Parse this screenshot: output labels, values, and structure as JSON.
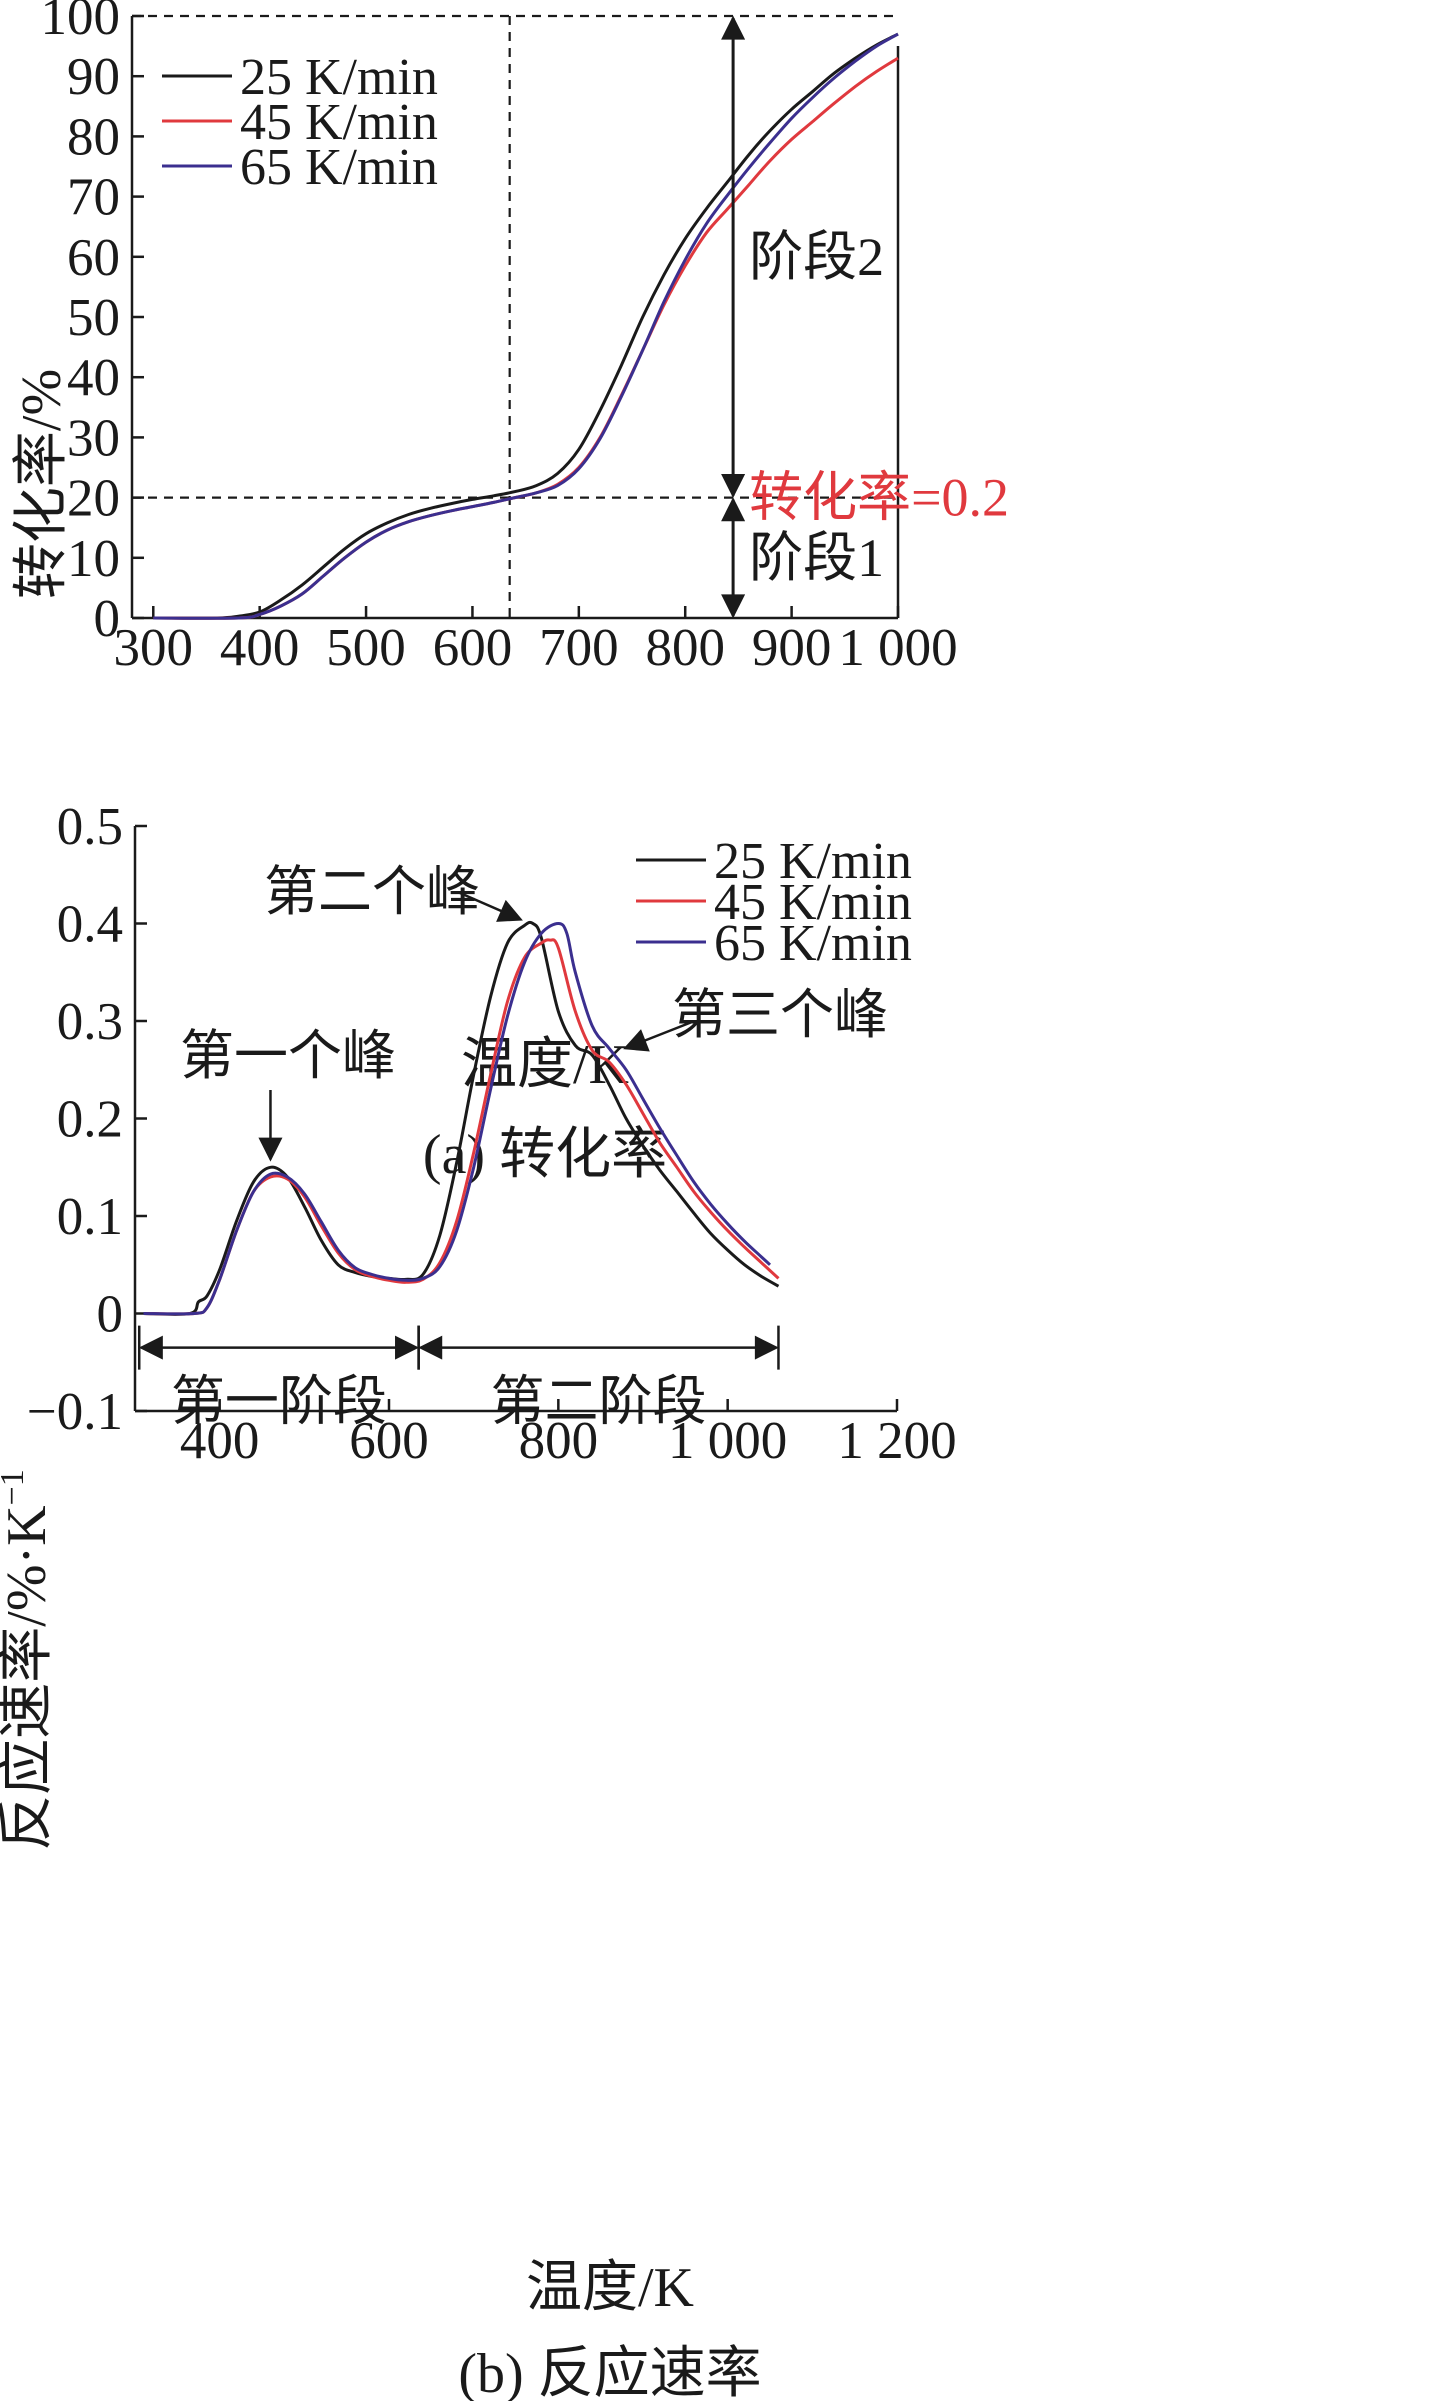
{
  "chart_data": [
    {
      "panel": "a",
      "type": "line",
      "caption": "(a) 转化率",
      "xlabel": "温度/K",
      "ylabel": "转化率/%",
      "xlim": [
        280,
        1000
      ],
      "ylim": [
        0,
        100
      ],
      "xticks": [
        {
          "value": 300,
          "label": "300"
        },
        {
          "value": 400,
          "label": "400"
        },
        {
          "value": 500,
          "label": "500"
        },
        {
          "value": 600,
          "label": "600"
        },
        {
          "value": 700,
          "label": "700"
        },
        {
          "value": 800,
          "label": "800"
        },
        {
          "value": 900,
          "label": "900"
        },
        {
          "value": 1000,
          "label": "1 000"
        }
      ],
      "yticks": [
        {
          "value": 0,
          "label": "0"
        },
        {
          "value": 10,
          "label": "10"
        },
        {
          "value": 20,
          "label": "20"
        },
        {
          "value": 30,
          "label": "30"
        },
        {
          "value": 40,
          "label": "40"
        },
        {
          "value": 50,
          "label": "50"
        },
        {
          "value": 60,
          "label": "60"
        },
        {
          "value": 70,
          "label": "70"
        },
        {
          "value": 80,
          "label": "80"
        },
        {
          "value": 90,
          "label": "90"
        },
        {
          "value": 100,
          "label": "100"
        }
      ],
      "legend_position": "top-left",
      "series": [
        {
          "name": "25 K/min",
          "color": "#1a1a1a",
          "x": [
            300,
            360,
            380,
            400,
            420,
            440,
            460,
            480,
            500,
            520,
            540,
            560,
            580,
            600,
            620,
            640,
            660,
            680,
            700,
            720,
            740,
            760,
            780,
            800,
            820,
            840,
            860,
            880,
            900,
            920,
            940,
            960,
            980,
            1000
          ],
          "y": [
            0,
            0,
            0.3,
            1,
            3,
            5.5,
            8.5,
            11.5,
            14,
            15.8,
            17.2,
            18.2,
            19,
            19.7,
            20.3,
            21,
            22,
            24,
            28,
            34.5,
            42,
            50,
            57,
            63,
            68,
            72.5,
            77,
            81,
            84.5,
            87.5,
            90.5,
            93,
            95.2,
            97
          ]
        },
        {
          "name": "45 K/min",
          "color": "#e0393e",
          "x": [
            300,
            380,
            400,
            420,
            440,
            460,
            480,
            500,
            520,
            540,
            560,
            580,
            600,
            620,
            640,
            660,
            680,
            700,
            720,
            740,
            760,
            780,
            800,
            820,
            840,
            860,
            880,
            900,
            920,
            940,
            960,
            980,
            1000
          ],
          "y": [
            0,
            0,
            0.6,
            2,
            4,
            7,
            10,
            12.6,
            14.6,
            16,
            17,
            17.8,
            18.5,
            19.2,
            20,
            20.8,
            22.2,
            25,
            30,
            37,
            44.5,
            52,
            58.5,
            64,
            68,
            72,
            76,
            79.5,
            82.5,
            85.5,
            88.3,
            90.8,
            93
          ]
        },
        {
          "name": "65 K/min",
          "color": "#3b2f8f",
          "x": [
            300,
            380,
            400,
            420,
            440,
            460,
            480,
            500,
            520,
            540,
            560,
            580,
            600,
            620,
            640,
            660,
            680,
            700,
            720,
            740,
            760,
            780,
            800,
            820,
            840,
            860,
            880,
            900,
            920,
            940,
            960,
            980,
            1000
          ],
          "y": [
            0,
            0,
            0.6,
            2,
            4,
            7,
            10,
            12.6,
            14.6,
            16,
            17,
            17.8,
            18.5,
            19.2,
            20,
            20.8,
            22,
            24.8,
            29.8,
            36.8,
            44.5,
            52.5,
            59.5,
            65.5,
            70.3,
            74.8,
            79,
            83,
            86.5,
            89.7,
            92.5,
            95,
            97
          ]
        }
      ],
      "reference_lines": [
        {
          "orientation": "horizontal",
          "value": 100
        },
        {
          "orientation": "horizontal",
          "value": 20
        },
        {
          "orientation": "vertical",
          "value": 635
        }
      ],
      "annotations": [
        {
          "text": "阶段2",
          "x": 845,
          "y": 60
        },
        {
          "text": "转化率=0.2",
          "x": 845,
          "y": 20,
          "color": "#e0393e"
        },
        {
          "text": "阶段1",
          "x": 845,
          "y": 10
        }
      ],
      "stage_arrows": [
        {
          "x": 845,
          "from": 20,
          "to": 100
        },
        {
          "x": 845,
          "from": 0,
          "to": 20
        }
      ]
    },
    {
      "panel": "b",
      "type": "line",
      "caption": "(b) 反应速率",
      "xlabel": "温度/K",
      "ylabel": "反应速率/%·K",
      "ylabel_superscript": "−1",
      "xlim": [
        300,
        1200
      ],
      "ylim": [
        -0.1,
        0.5
      ],
      "xticks": [
        {
          "value": 400,
          "label": "400"
        },
        {
          "value": 600,
          "label": "600"
        },
        {
          "value": 800,
          "label": "800"
        },
        {
          "value": 1000,
          "label": "1 000"
        },
        {
          "value": 1200,
          "label": "1 200"
        }
      ],
      "yticks": [
        {
          "value": -0.1,
          "label": "−0.1"
        },
        {
          "value": 0,
          "label": "0"
        },
        {
          "value": 0.1,
          "label": "0.1"
        },
        {
          "value": 0.2,
          "label": "0.2"
        },
        {
          "value": 0.3,
          "label": "0.3"
        },
        {
          "value": 0.4,
          "label": "0.4"
        },
        {
          "value": 0.5,
          "label": "0.5"
        }
      ],
      "legend_position": "top-right",
      "series": [
        {
          "name": "25 K/min",
          "color": "#1a1a1a",
          "x": [
            310,
            365,
            375,
            385,
            400,
            420,
            440,
            460,
            480,
            500,
            520,
            540,
            560,
            580,
            600,
            620,
            640,
            660,
            680,
            700,
            720,
            740,
            760,
            770,
            780,
            800,
            820,
            840,
            860,
            880,
            900,
            920,
            940,
            960,
            980,
            1000,
            1020,
            1040,
            1060
          ],
          "y": [
            0,
            0,
            0.012,
            0.018,
            0.045,
            0.095,
            0.135,
            0.15,
            0.14,
            0.11,
            0.075,
            0.05,
            0.042,
            0.038,
            0.036,
            0.035,
            0.04,
            0.08,
            0.155,
            0.245,
            0.325,
            0.38,
            0.398,
            0.4,
            0.385,
            0.31,
            0.275,
            0.265,
            0.235,
            0.2,
            0.172,
            0.147,
            0.125,
            0.103,
            0.082,
            0.065,
            0.05,
            0.038,
            0.028
          ]
        },
        {
          "name": "45 K/min",
          "color": "#e0393e",
          "x": [
            310,
            370,
            385,
            400,
            420,
            440,
            460,
            480,
            500,
            520,
            540,
            560,
            580,
            600,
            620,
            640,
            660,
            680,
            700,
            720,
            740,
            760,
            780,
            790,
            800,
            820,
            840,
            860,
            880,
            900,
            920,
            940,
            960,
            980,
            1000,
            1020,
            1040,
            1060
          ],
          "y": [
            0,
            0,
            0.006,
            0.035,
            0.085,
            0.125,
            0.14,
            0.138,
            0.12,
            0.09,
            0.062,
            0.045,
            0.038,
            0.034,
            0.032,
            0.035,
            0.052,
            0.095,
            0.165,
            0.245,
            0.32,
            0.365,
            0.38,
            0.383,
            0.375,
            0.31,
            0.27,
            0.258,
            0.235,
            0.205,
            0.175,
            0.15,
            0.125,
            0.104,
            0.085,
            0.068,
            0.052,
            0.036
          ]
        },
        {
          "name": "65 K/min",
          "color": "#3b2f8f",
          "x": [
            310,
            370,
            385,
            400,
            420,
            440,
            460,
            480,
            500,
            520,
            540,
            560,
            580,
            600,
            620,
            640,
            660,
            680,
            700,
            720,
            740,
            760,
            780,
            800,
            810,
            820,
            840,
            860,
            880,
            900,
            920,
            940,
            960,
            980,
            1000,
            1020,
            1040,
            1050
          ],
          "y": [
            0,
            0,
            0.006,
            0.035,
            0.085,
            0.125,
            0.143,
            0.14,
            0.123,
            0.094,
            0.065,
            0.047,
            0.04,
            0.036,
            0.034,
            0.036,
            0.048,
            0.085,
            0.15,
            0.23,
            0.305,
            0.36,
            0.39,
            0.4,
            0.39,
            0.35,
            0.295,
            0.272,
            0.25,
            0.22,
            0.19,
            0.162,
            0.135,
            0.112,
            0.092,
            0.074,
            0.058,
            0.05
          ]
        }
      ],
      "annotations": [
        {
          "text": "第一个峰",
          "target_x": 460,
          "target_y": 0.15
        },
        {
          "text": "第二个峰",
          "target_x": 765,
          "target_y": 0.4
        },
        {
          "text": "第三个峰",
          "target_x": 872,
          "target_y": 0.27
        }
      ],
      "stages": [
        {
          "label": "第一阶段",
          "from": 305,
          "to": 635
        },
        {
          "label": "第二阶段",
          "from": 635,
          "to": 1060
        }
      ]
    }
  ]
}
